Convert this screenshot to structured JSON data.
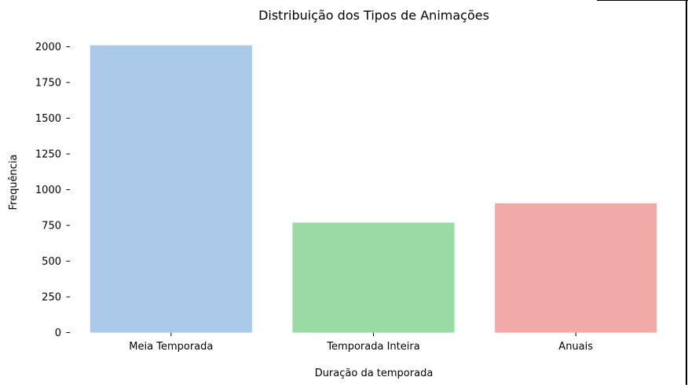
{
  "chart_data": {
    "type": "bar",
    "title": "Distribuição dos Tipos de Animações",
    "xlabel": "Duração da temporada",
    "ylabel": "Frequência",
    "categories": [
      "Meia Temporada",
      "Temporada Inteira",
      "Anuais"
    ],
    "values": [
      2010,
      770,
      905
    ],
    "colors": [
      "#abc9e9",
      "#9adaa5",
      "#f1aaa8"
    ],
    "ylim": [
      0,
      2000
    ],
    "yticks": [
      0,
      250,
      500,
      750,
      1000,
      1250,
      1500,
      1750,
      2000
    ],
    "grid": false,
    "legend": false
  }
}
